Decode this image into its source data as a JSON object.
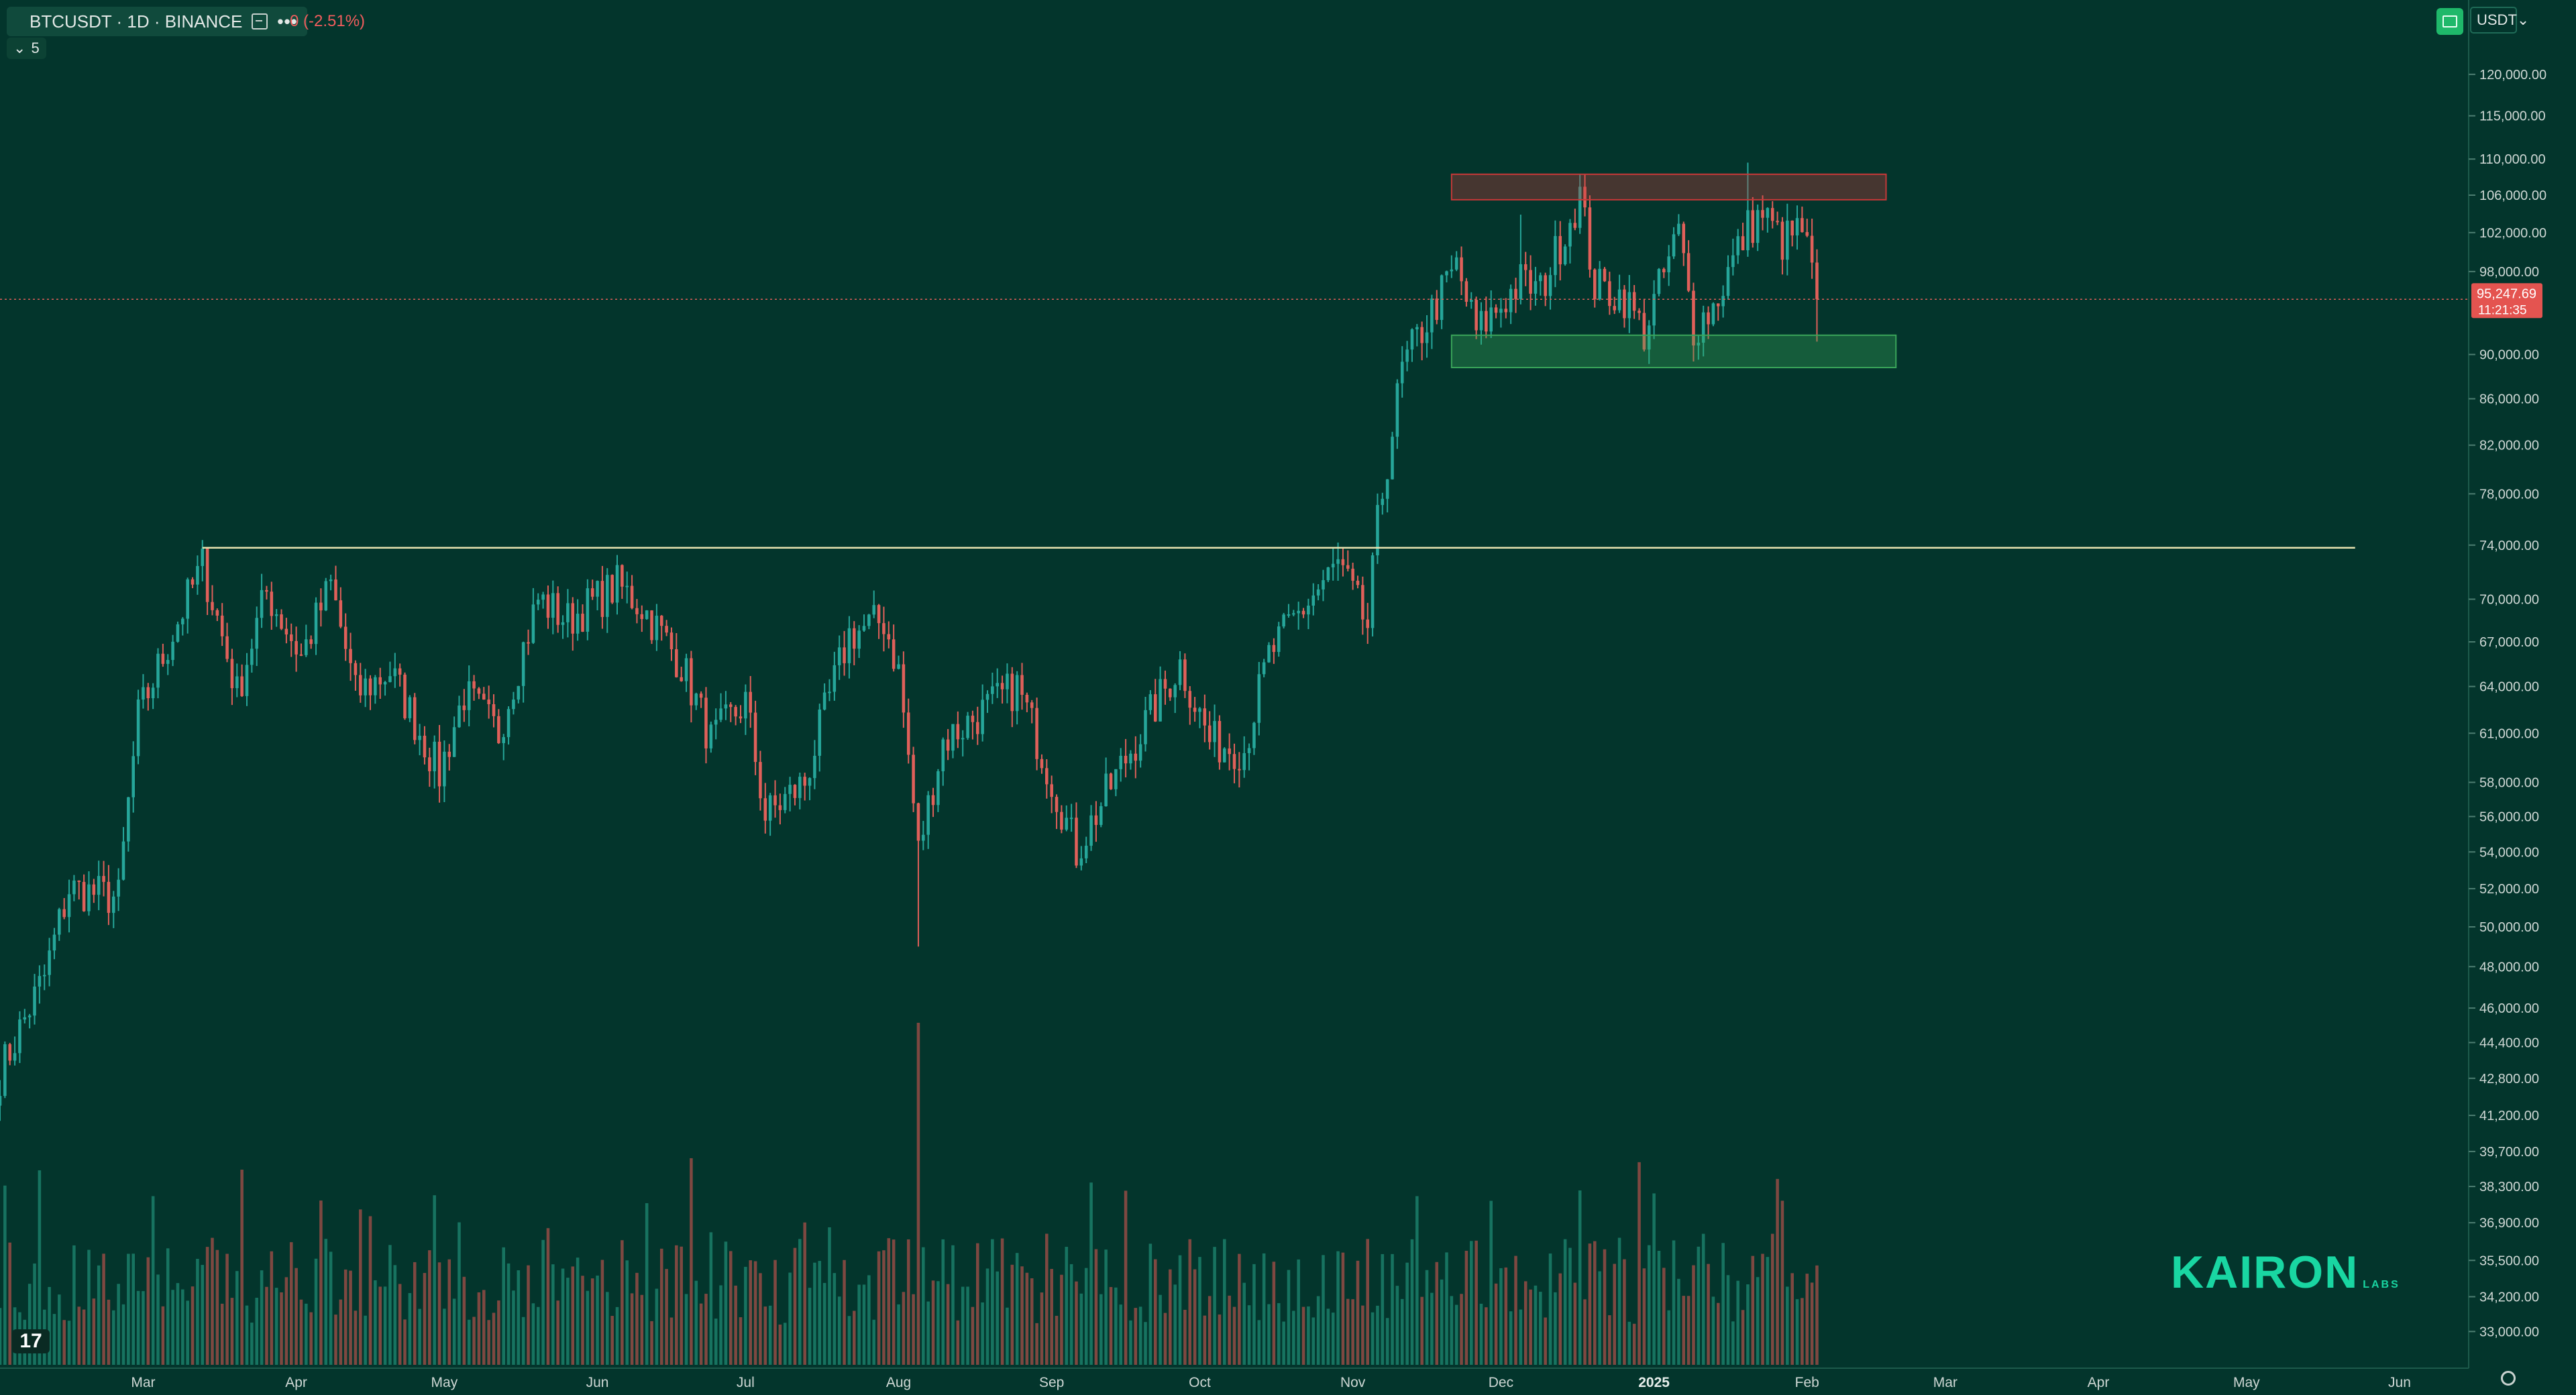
{
  "header": {
    "symbol_label": "BTCUSDT · 1D · BINANCE",
    "change_label": "0 (-2.51%)",
    "layer_count": "5"
  },
  "currency_button": {
    "label": "USDT"
  },
  "price_tag": {
    "price": "95,247.69",
    "countdown": "11:21:35"
  },
  "watermark": {
    "brand": "KAIRON",
    "sub": "LABS"
  },
  "colors": {
    "background": "#03352c",
    "up": "#26a69a",
    "down": "#e0605a",
    "resistance_zone": "#c73838",
    "support_zone": "#3aa55a",
    "level_line": "#e8e3b0",
    "price_line": "#e0605a",
    "watermark": "#19d6a2"
  },
  "chart_data": {
    "type": "candlestick",
    "y_scale": "log",
    "ylim": [
      32000,
      126000
    ],
    "x_range": [
      "2024-02-01",
      "2025-06-15"
    ],
    "y_ticks": [
      "120,000.00",
      "115,000.00",
      "110,000.00",
      "106,000.00",
      "102,000.00",
      "98,000.00",
      "90,000.00",
      "86,000.00",
      "82,000.00",
      "78,000.00",
      "74,000.00",
      "70,000.00",
      "67,000.00",
      "64,000.00",
      "61,000.00",
      "58,000.00",
      "56,000.00",
      "54,000.00",
      "52,000.00",
      "50,000.00",
      "48,000.00",
      "46,000.00",
      "44,400.00",
      "42,800.00",
      "41,200.00",
      "39,700.00",
      "38,300.00",
      "36,900.00",
      "35,500.00",
      "34,200.00",
      "33,000.00"
    ],
    "x_ticks": [
      {
        "label": "Mar",
        "date": "2024-03-01"
      },
      {
        "label": "Apr",
        "date": "2024-04-01"
      },
      {
        "label": "May",
        "date": "2024-05-01"
      },
      {
        "label": "Jun",
        "date": "2024-06-01"
      },
      {
        "label": "Jul",
        "date": "2024-07-01"
      },
      {
        "label": "Aug",
        "date": "2024-08-01"
      },
      {
        "label": "Sep",
        "date": "2024-09-01"
      },
      {
        "label": "Oct",
        "date": "2024-10-01"
      },
      {
        "label": "Nov",
        "date": "2024-11-01"
      },
      {
        "label": "Dec",
        "date": "2024-12-01"
      },
      {
        "label": "2025",
        "date": "2025-01-01"
      },
      {
        "label": "Feb",
        "date": "2025-02-01"
      },
      {
        "label": "Mar",
        "date": "2025-03-01"
      },
      {
        "label": "Apr",
        "date": "2025-04-01"
      },
      {
        "label": "May",
        "date": "2025-05-01"
      },
      {
        "label": "Jun",
        "date": "2025-06-01"
      }
    ],
    "price_path": [
      [
        "2024-02-01",
        43000
      ],
      [
        "2024-02-10",
        47500
      ],
      [
        "2024-02-15",
        52000
      ],
      [
        "2024-02-25",
        51500
      ],
      [
        "2024-02-29",
        62000
      ],
      [
        "2024-03-05",
        66000
      ],
      [
        "2024-03-13",
        72500
      ],
      [
        "2024-03-20",
        63500
      ],
      [
        "2024-03-26",
        70500
      ],
      [
        "2024-04-02",
        66000
      ],
      [
        "2024-04-08",
        71000
      ],
      [
        "2024-04-13",
        63500
      ],
      [
        "2024-04-20",
        65000
      ],
      [
        "2024-04-30",
        58500
      ],
      [
        "2024-05-05",
        63500
      ],
      [
        "2024-05-12",
        61000
      ],
      [
        "2024-05-20",
        70000
      ],
      [
        "2024-05-26",
        68500
      ],
      [
        "2024-06-05",
        71000
      ],
      [
        "2024-06-10",
        69500
      ],
      [
        "2024-06-18",
        65500
      ],
      [
        "2024-06-24",
        60500
      ],
      [
        "2024-07-01",
        63000
      ],
      [
        "2024-07-05",
        56000
      ],
      [
        "2024-07-13",
        58000
      ],
      [
        "2024-07-22",
        67500
      ],
      [
        "2024-07-29",
        68500
      ],
      [
        "2024-08-01",
        65000
      ],
      [
        "2024-08-05",
        54000
      ],
      [
        "2024-08-10",
        60500
      ],
      [
        "2024-08-25",
        64000
      ],
      [
        "2024-09-06",
        54000
      ],
      [
        "2024-09-18",
        60500
      ],
      [
        "2024-09-27",
        65500
      ],
      [
        "2024-10-03",
        60500
      ],
      [
        "2024-10-10",
        60000
      ],
      [
        "2024-10-15",
        66000
      ],
      [
        "2024-10-20",
        68500
      ],
      [
        "2024-10-29",
        72500
      ],
      [
        "2024-11-04",
        68000
      ],
      [
        "2024-11-06",
        75500
      ],
      [
        "2024-11-11",
        88500
      ],
      [
        "2024-11-13",
        90500
      ],
      [
        "2024-11-22",
        98500
      ],
      [
        "2024-11-26",
        92000
      ],
      [
        "2024-12-05",
        97000
      ],
      [
        "2024-12-09",
        96000
      ],
      [
        "2024-12-17",
        106000
      ],
      [
        "2024-12-20",
        96500
      ],
      [
        "2024-12-26",
        95500
      ],
      [
        "2024-12-30",
        92000
      ],
      [
        "2025-01-06",
        102000
      ],
      [
        "2025-01-09",
        92500
      ],
      [
        "2025-01-13",
        94500
      ],
      [
        "2025-01-20",
        102500
      ],
      [
        "2025-01-23",
        104000
      ],
      [
        "2025-01-27",
        101000
      ],
      [
        "2025-01-31",
        102400
      ],
      [
        "2025-02-03",
        95247.69
      ]
    ],
    "notable_wicks": [
      {
        "date": "2024-03-14",
        "high": 73800
      },
      {
        "date": "2024-08-05",
        "low": 49000
      },
      {
        "date": "2024-12-05",
        "high": 103900
      },
      {
        "date": "2024-12-17",
        "high": 108300
      },
      {
        "date": "2025-01-20",
        "high": 109600
      },
      {
        "date": "2025-02-03",
        "low": 91200
      }
    ],
    "zones": [
      {
        "name": "resistance",
        "from": "2024-11-21",
        "to": "2025-02-17",
        "low": 105500,
        "high": 108300
      },
      {
        "name": "support",
        "from": "2024-11-21",
        "to": "2025-02-19",
        "low": 88800,
        "high": 91800
      }
    ],
    "horizontal_line": {
      "value": 73800,
      "from": "2024-03-13",
      "to": "2025-05-23"
    },
    "last_price": 95247.69,
    "volume_series": {
      "visible": true,
      "peak_dates": [
        "2024-08-05",
        "2024-03-05",
        "2024-12-05",
        "2025-01-20"
      ]
    }
  }
}
